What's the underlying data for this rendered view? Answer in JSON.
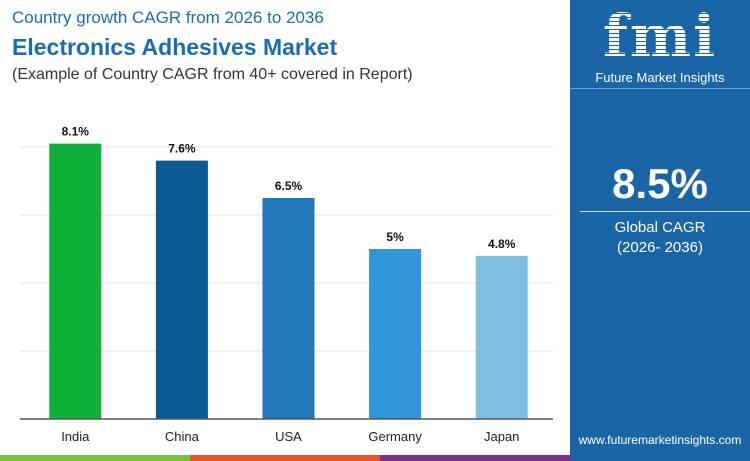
{
  "header": {
    "subtitle": "Country growth CAGR from 2026 to 2036",
    "title": "Electronics Adhesives Market",
    "note": "(Example of Country CAGR from 40+ covered in Report)"
  },
  "chart_data": {
    "type": "bar",
    "categories": [
      "India",
      "China",
      "USA",
      "Germany",
      "Japan"
    ],
    "values": [
      8.1,
      7.6,
      6.5,
      5,
      4.8
    ],
    "labels": [
      "8.1%",
      "7.6%",
      "6.5%",
      "5%",
      "4.8%"
    ],
    "colors": [
      "#0fb037",
      "#0b5a94",
      "#1f76b8",
      "#3096d8",
      "#80bde3"
    ],
    "ylim": [
      0,
      8.1
    ],
    "grid_step": 2,
    "grid": true,
    "title": "",
    "xlabel": "",
    "ylabel": ""
  },
  "side": {
    "logo": "fmi",
    "logo_sub": "Future Market Insights",
    "cagr": "8.5%",
    "cagr_label": "Global CAGR",
    "cagr_period": "(2026- 2036)",
    "url": "www.futuremarketinsights.com"
  },
  "footer_colors": [
    "#7cc043",
    "#e8542a",
    "#7d2e8a"
  ]
}
